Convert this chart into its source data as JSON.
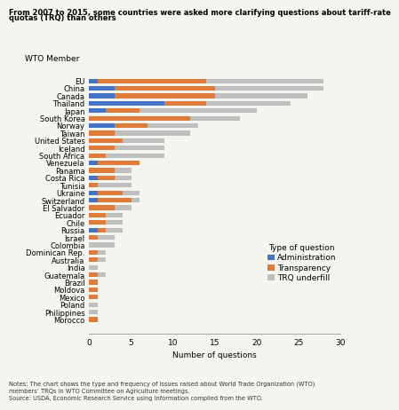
{
  "countries": [
    "EU",
    "China",
    "Canada",
    "Thailand",
    "Japan",
    "South Korea",
    "Norway",
    "Taiwan",
    "United States",
    "Iceland",
    "South Africa",
    "Venezuela",
    "Panama",
    "Costa Rica",
    "Tunisia",
    "Ukraine",
    "Switzerland",
    "El Salvador",
    "Ecuador",
    "Chile",
    "Russia",
    "Israel",
    "Colombia",
    "Dominican Rep.",
    "Australia",
    "India",
    "Guatemala",
    "Brazil",
    "Moldova",
    "Mexico",
    "Poland",
    "Philippines",
    "Morocco"
  ],
  "administration": [
    1,
    3,
    3,
    9,
    2,
    0,
    3,
    0,
    0,
    0,
    0,
    1,
    0,
    1,
    0,
    1,
    1,
    0,
    0,
    0,
    1,
    0,
    0,
    0,
    0,
    0,
    0,
    0,
    0,
    0,
    0,
    0,
    0
  ],
  "transparency": [
    13,
    12,
    12,
    5,
    4,
    12,
    4,
    3,
    4,
    3,
    2,
    5,
    3,
    2,
    1,
    3,
    4,
    3,
    2,
    2,
    1,
    1,
    0,
    1,
    1,
    0,
    1,
    1,
    1,
    1,
    0,
    0,
    1
  ],
  "trq_underfill": [
    14,
    13,
    11,
    10,
    14,
    6,
    6,
    9,
    5,
    6,
    7,
    0,
    2,
    2,
    4,
    2,
    1,
    2,
    2,
    2,
    2,
    2,
    3,
    1,
    1,
    1,
    1,
    0,
    0,
    0,
    1,
    1,
    0
  ],
  "colors": {
    "administration": "#4472C4",
    "transparency": "#E07B39",
    "trq_underfill": "#BFBFBF"
  },
  "title_line1": "From 2007 to 2015, some countries were asked more clarifying questions about tariff-rate",
  "title_line2": "quotas (TRQ) than others",
  "xlabel": "Number of questions",
  "ylabel": "WTO Member",
  "xlim": [
    0,
    30
  ],
  "xticks": [
    0,
    5,
    10,
    15,
    20,
    25,
    30
  ],
  "notes_line1": "Notes: The chart shows the type and frequency of issues raised about World Trade Organization (WTO)",
  "notes_line2": "members’ TRQs in WTO Committee on Agriculture meetings.",
  "notes_line3": "Source: USDA, Economic Research Service using information compiled from the WTO.",
  "legend_title": "Type of question",
  "legend_labels": [
    "Administration",
    "Transparency",
    "TRQ underfill"
  ]
}
